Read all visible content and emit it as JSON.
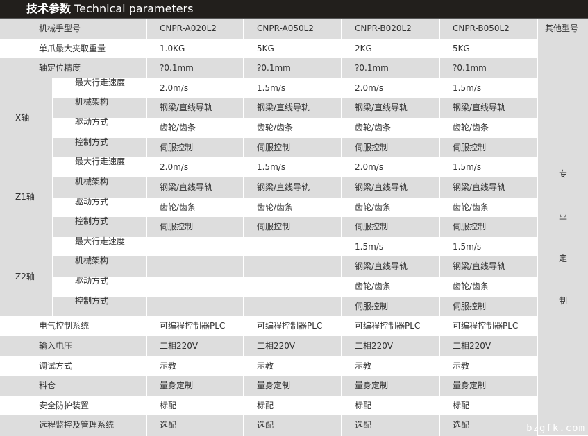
{
  "title": {
    "cn": "技术参数",
    "en": "Technical parameters"
  },
  "header": {
    "label": "机械手型号",
    "models": [
      "CNPR-A020L2",
      "CNPR-A050L2",
      "CNPR-B020L2",
      "CNPR-B050L2"
    ],
    "other": "其他型号"
  },
  "other_text": [
    "专",
    "业",
    "定",
    "制"
  ],
  "rows_top": [
    {
      "label": "单爪最大夹取重量",
      "values": [
        "1.0KG",
        "5KG",
        "2KG",
        "5KG"
      ]
    },
    {
      "label": "轴定位精度",
      "values": [
        "?0.1mm",
        "?0.1mm",
        "?0.1mm",
        "?0.1mm"
      ]
    }
  ],
  "axes": [
    {
      "name": "X轴",
      "rows": [
        {
          "label": "最大行走速度",
          "values": [
            "2.0m/s",
            "1.5m/s",
            "2.0m/s",
            "1.5m/s"
          ]
        },
        {
          "label": "机械架构",
          "values": [
            "钢梁/直线导轨",
            "钢梁/直线导轨",
            "钢梁/直线导轨",
            "钢梁/直线导轨"
          ]
        },
        {
          "label": "驱动方式",
          "values": [
            "齿轮/齿条",
            "齿轮/齿条",
            "齿轮/齿条",
            "齿轮/齿条"
          ]
        },
        {
          "label": "控制方式",
          "values": [
            "伺服控制",
            "伺服控制",
            "伺服控制",
            "伺服控制"
          ]
        }
      ]
    },
    {
      "name": "Z1轴",
      "rows": [
        {
          "label": "最大行走速度",
          "values": [
            "2.0m/s",
            "1.5m/s",
            "2.0m/s",
            "1.5m/s"
          ]
        },
        {
          "label": "机械架构",
          "values": [
            "钢梁/直线导轨",
            "钢梁/直线导轨",
            "钢梁/直线导轨",
            "钢梁/直线导轨"
          ]
        },
        {
          "label": "驱动方式",
          "values": [
            "齿轮/齿条",
            "齿轮/齿条",
            "齿轮/齿条",
            "齿轮/齿条"
          ]
        },
        {
          "label": "控制方式",
          "values": [
            "伺服控制",
            "伺服控制",
            "伺服控制",
            "伺服控制"
          ]
        }
      ]
    },
    {
      "name": "Z2轴",
      "rows": [
        {
          "label": "最大行走速度",
          "values": [
            "",
            "",
            "1.5m/s",
            "1.5m/s"
          ]
        },
        {
          "label": "机械架构",
          "values": [
            "",
            "",
            "钢梁/直线导轨",
            "钢梁/直线导轨"
          ]
        },
        {
          "label": "驱动方式",
          "values": [
            "",
            "",
            "齿轮/齿条",
            "齿轮/齿条"
          ]
        },
        {
          "label": "控制方式",
          "values": [
            "",
            "",
            "伺服控制",
            "伺服控制"
          ]
        }
      ]
    }
  ],
  "rows_bottom": [
    {
      "label": "电气控制系统",
      "values": [
        "可编程控制器PLC",
        "可编程控制器PLC",
        "可编程控制器PLC",
        "可编程控制器PLC"
      ]
    },
    {
      "label": "输入电压",
      "values": [
        "二相220V",
        "二相220V",
        "二相220V",
        "二相220V"
      ]
    },
    {
      "label": "调试方式",
      "values": [
        "示教",
        "示教",
        "示教",
        "示教"
      ]
    },
    {
      "label": "料仓",
      "values": [
        "量身定制",
        "量身定制",
        "量身定制",
        "量身定制"
      ]
    },
    {
      "label": "安全防护装置",
      "values": [
        "标配",
        "标配",
        "标配",
        "标配"
      ]
    },
    {
      "label": "远程监控及管理系统",
      "values": [
        "选配",
        "选配",
        "选配",
        "选配"
      ]
    }
  ],
  "watermark": "bzgfk.com"
}
